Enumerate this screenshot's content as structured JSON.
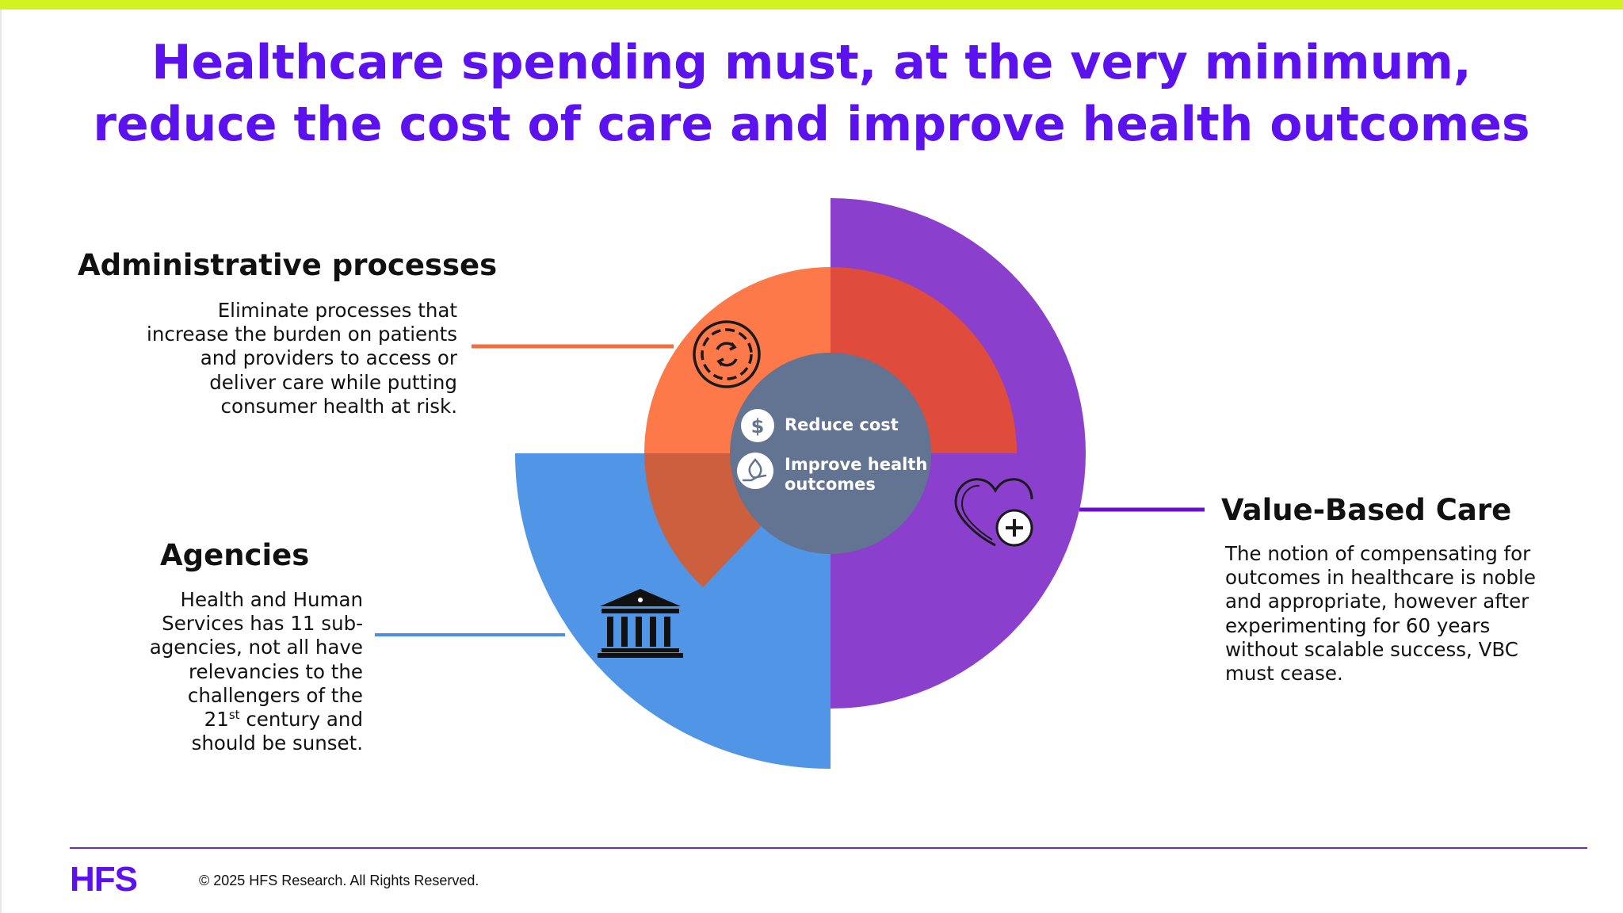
{
  "header": {
    "title_line1": "Healthcare spending must, at the very minimum,",
    "title_line2": "reduce the cost of care and improve health outcomes"
  },
  "center": {
    "reduce_cost": "Reduce cost",
    "improve_line1": "Improve health",
    "improve_line2": "outcomes"
  },
  "admin": {
    "heading": "Administrative processes",
    "lines": [
      "Eliminate processes that",
      "increase the burden on patients",
      "and providers to access or",
      "deliver care while putting",
      "consumer health at risk."
    ]
  },
  "agencies": {
    "heading": "Agencies",
    "lines": [
      "Health and Human",
      "Services has 11 sub-",
      "agencies, not all have",
      "relevancies to the",
      "challengers of the"
    ],
    "century_num": "21",
    "century_sup": "st",
    "century_rest": " century and",
    "last_line": "should be sunset."
  },
  "vbc": {
    "heading": "Value-Based Care",
    "lines": [
      "The notion of compensating for",
      "outcomes in healthcare is noble",
      "and appropriate, however after",
      "experimenting for 60 years",
      "without scalable success, VBC",
      "must cease."
    ]
  },
  "footer": {
    "logo": "HFS",
    "copyright": "© 2025 HFS Research. All Rights Reserved."
  },
  "colors": {
    "title": "#5b12ee",
    "accent_bar": "#d4f21f",
    "purple": "#8a3fcd",
    "orange": "#fd7949",
    "red": "#e04c3c",
    "overlap": "#cc5f3e",
    "blue": "#5195e6",
    "center": "#627492"
  },
  "icons": {
    "admin": "gear-cycle-icon",
    "agencies": "government-building-icon",
    "vbc": "heart-plus-icon",
    "reduce_cost": "dollar-icon",
    "improve_health": "health-hand-icon"
  }
}
